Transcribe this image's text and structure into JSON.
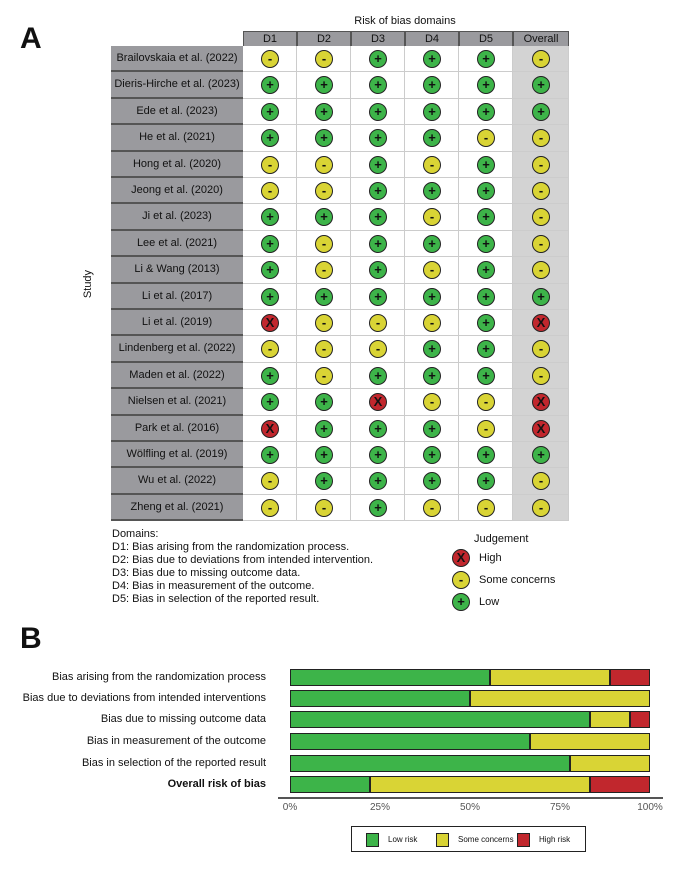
{
  "panel_a_label": "A",
  "panel_b_label": "B",
  "chart_data": [
    {
      "type": "table",
      "title": "Risk of bias domains",
      "ylabel": "Study",
      "columns": [
        "D1",
        "D2",
        "D3",
        "D4",
        "D5",
        "Overall"
      ],
      "studies": [
        {
          "name": "Brailovskaia et al. (2022)",
          "j": [
            "some",
            "some",
            "low",
            "low",
            "low",
            "some"
          ]
        },
        {
          "name": "Dieris-Hirche et al. (2023)",
          "j": [
            "low",
            "low",
            "low",
            "low",
            "low",
            "low"
          ]
        },
        {
          "name": "Ede et al. (2023)",
          "j": [
            "low",
            "low",
            "low",
            "low",
            "low",
            "low"
          ]
        },
        {
          "name": "He et al. (2021)",
          "j": [
            "low",
            "low",
            "low",
            "low",
            "some",
            "some"
          ]
        },
        {
          "name": "Hong et al. (2020)",
          "j": [
            "some",
            "some",
            "low",
            "some",
            "low",
            "some"
          ]
        },
        {
          "name": "Jeong et al. (2020)",
          "j": [
            "some",
            "some",
            "low",
            "low",
            "low",
            "some"
          ]
        },
        {
          "name": "Ji et al. (2023)",
          "j": [
            "low",
            "low",
            "low",
            "some",
            "low",
            "some"
          ]
        },
        {
          "name": "Lee et al.  (2021)",
          "j": [
            "low",
            "some",
            "low",
            "low",
            "low",
            "some"
          ]
        },
        {
          "name": "Li & Wang (2013)",
          "j": [
            "low",
            "some",
            "low",
            "some",
            "low",
            "some"
          ]
        },
        {
          "name": "Li et al. (2017)",
          "j": [
            "low",
            "low",
            "low",
            "low",
            "low",
            "low"
          ]
        },
        {
          "name": "Li et al. (2019)",
          "j": [
            "high",
            "some",
            "some",
            "some",
            "low",
            "high"
          ]
        },
        {
          "name": "Lindenberg et al. (2022)",
          "j": [
            "some",
            "some",
            "some",
            "low",
            "low",
            "some"
          ]
        },
        {
          "name": "Maden et al. (2022)",
          "j": [
            "low",
            "some",
            "low",
            "low",
            "low",
            "some"
          ]
        },
        {
          "name": "Nielsen et al. (2021)",
          "j": [
            "low",
            "low",
            "high",
            "some",
            "some",
            "high"
          ]
        },
        {
          "name": "Park et al. (2016)",
          "j": [
            "high",
            "low",
            "low",
            "low",
            "some",
            "high"
          ]
        },
        {
          "name": "Wölfling et al. (2019)",
          "j": [
            "low",
            "low",
            "low",
            "low",
            "low",
            "low"
          ]
        },
        {
          "name": "Wu et al. (2022)",
          "j": [
            "some",
            "low",
            "low",
            "low",
            "low",
            "some"
          ]
        },
        {
          "name": "Zheng et al. (2021)",
          "j": [
            "some",
            "some",
            "low",
            "some",
            "some",
            "some"
          ]
        }
      ],
      "symbols": {
        "low": "+",
        "some": "-",
        "high": "X"
      },
      "colors": {
        "low": "#3db449",
        "some": "#d9d435",
        "high": "#c1272d"
      },
      "domains_title": "Domains:",
      "domains": [
        "D1: Bias arising from the randomization process.",
        "D2: Bias due to deviations from intended intervention.",
        "D3: Bias due to missing outcome data.",
        "D4: Bias in measurement of the outcome.",
        "D5: Bias in selection of the reported result."
      ],
      "judgement_title": "Judgement",
      "judgements": [
        {
          "key": "high",
          "label": "High"
        },
        {
          "key": "some",
          "label": "Some concerns"
        },
        {
          "key": "low",
          "label": "Low"
        }
      ]
    },
    {
      "type": "bar",
      "stacked": true,
      "orientation": "horizontal",
      "categories": [
        "Bias arising from the randomization process",
        "Bias due to deviations from intended interventions",
        "Bias due to missing outcome data",
        "Bias in measurement of the outcome",
        "Bias in selection of the reported result",
        "Overall risk of bias"
      ],
      "series": [
        {
          "name": "Low risk",
          "color": "#3db449",
          "values": [
            55.6,
            50,
            83.3,
            66.7,
            77.8,
            22.2
          ]
        },
        {
          "name": "Some concerns",
          "color": "#d9d435",
          "values": [
            33.3,
            50,
            11.1,
            33.3,
            22.2,
            61.1
          ]
        },
        {
          "name": "High risk",
          "color": "#c1272d",
          "values": [
            11.1,
            0,
            5.6,
            0,
            0,
            16.7
          ]
        }
      ],
      "xlim": [
        0,
        100
      ],
      "xticks": [
        "0%",
        "25%",
        "50%",
        "75%",
        "100%"
      ],
      "legend": "bottom"
    }
  ]
}
